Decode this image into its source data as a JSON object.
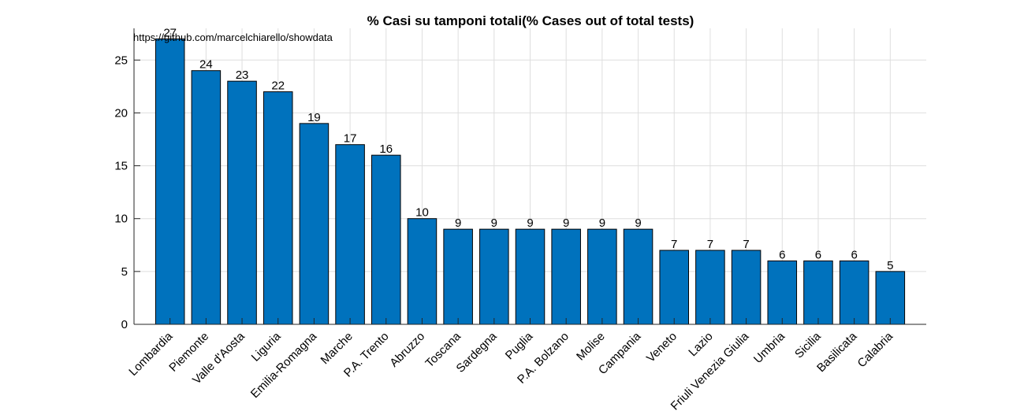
{
  "chart_data": {
    "type": "bar",
    "title": "% Casi su tamponi totali(% Cases out of total tests)",
    "annotation": "https://github.com/marcelchiarello/showdata",
    "xlabel": "",
    "ylabel": "",
    "categories": [
      "Lombardia",
      "Piemonte",
      "Valle d'Aosta",
      "Liguria",
      "Emilia-Romagna",
      "Marche",
      "P.A. Trento",
      "Abruzzo",
      "Toscana",
      "Sardegna",
      "Puglia",
      "P.A. Bolzano",
      "Molise",
      "Campania",
      "Veneto",
      "Lazio",
      "Friuli Venezia Giulia",
      "Umbria",
      "Sicilia",
      "Basilicata",
      "Calabria"
    ],
    "values": [
      27,
      24,
      23,
      22,
      19,
      17,
      16,
      10,
      9,
      9,
      9,
      9,
      9,
      9,
      7,
      7,
      7,
      6,
      6,
      6,
      5
    ],
    "yticks": [
      0,
      5,
      10,
      15,
      20,
      25
    ],
    "ylim": [
      0,
      28
    ],
    "grid": true,
    "bar_color": "#0072BD"
  }
}
